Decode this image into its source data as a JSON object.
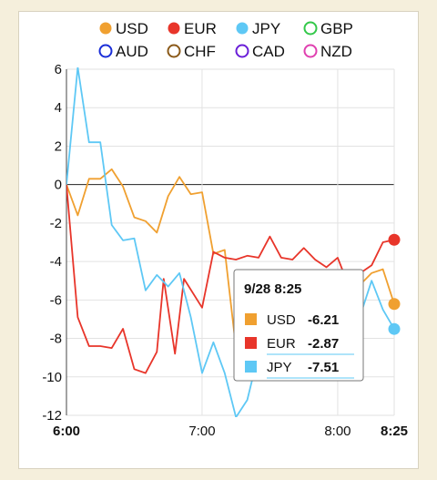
{
  "colors": {
    "USD": "#f0a030",
    "EUR": "#e8352a",
    "JPY": "#5ec8f5",
    "GBP": "#33c84a",
    "AUD": "#1a2ed8",
    "CHF": "#8b5a1a",
    "CAD": "#6a1fd8",
    "NZD": "#e040b0"
  },
  "legend": [
    {
      "name": "USD",
      "filled": true
    },
    {
      "name": "EUR",
      "filled": true
    },
    {
      "name": "JPY",
      "filled": true
    },
    {
      "name": "GBP",
      "filled": false
    },
    {
      "name": "AUD",
      "filled": false
    },
    {
      "name": "CHF",
      "filled": false
    },
    {
      "name": "CAD",
      "filled": false
    },
    {
      "name": "NZD",
      "filled": false
    }
  ],
  "tooltip": {
    "title": "9/28 8:25",
    "rows": [
      {
        "name": "USD",
        "value": "-6.21"
      },
      {
        "name": "EUR",
        "value": "-2.87"
      },
      {
        "name": "JPY",
        "value": "-7.51"
      }
    ]
  },
  "chart_data": {
    "type": "line",
    "ylim": [
      -12,
      6
    ],
    "xlim_minutes": [
      0,
      85
    ],
    "y_ticks": [
      "6",
      "4",
      "2",
      "0",
      "-2",
      "-4",
      "-6",
      "-8",
      "-10",
      "-12"
    ],
    "x_ticks": [
      {
        "label": "6:00",
        "min": 0,
        "bold": true
      },
      {
        "label": "7:00",
        "min": 60,
        "bold": false
      },
      {
        "label": "8:00",
        "min": 120,
        "bold": false
      },
      {
        "label": "8:25",
        "min": 145,
        "bold": true
      }
    ],
    "series": [
      {
        "name": "USD",
        "points": [
          [
            0,
            0
          ],
          [
            5,
            -1.6
          ],
          [
            10,
            0.3
          ],
          [
            15,
            0.3
          ],
          [
            20,
            0.8
          ],
          [
            25,
            -0.1
          ],
          [
            30,
            -1.7
          ],
          [
            35,
            -1.9
          ],
          [
            40,
            -2.5
          ],
          [
            45,
            -0.6
          ],
          [
            50,
            0.4
          ],
          [
            55,
            -0.5
          ],
          [
            60,
            -0.4
          ],
          [
            65,
            -3.6
          ],
          [
            70,
            -3.4
          ],
          [
            75,
            -8.5
          ],
          [
            80,
            -8.2
          ],
          [
            85,
            -7.6
          ],
          [
            90,
            -7.2
          ],
          [
            95,
            -6.8
          ],
          [
            100,
            -6.4
          ],
          [
            105,
            -6.0
          ],
          [
            110,
            -5.6
          ],
          [
            115,
            -5.2
          ],
          [
            120,
            -6.2
          ],
          [
            125,
            -4.8
          ],
          [
            130,
            -5.2
          ],
          [
            135,
            -4.6
          ],
          [
            140,
            -4.4
          ],
          [
            145,
            -6.21
          ]
        ]
      },
      {
        "name": "EUR",
        "points": [
          [
            0,
            0
          ],
          [
            5,
            -6.9
          ],
          [
            10,
            -8.4
          ],
          [
            15,
            -8.4
          ],
          [
            20,
            -8.5
          ],
          [
            25,
            -7.5
          ],
          [
            30,
            -9.6
          ],
          [
            35,
            -9.8
          ],
          [
            40,
            -8.7
          ],
          [
            43,
            -4.9
          ],
          [
            48,
            -8.8
          ],
          [
            52,
            -4.9
          ],
          [
            60,
            -6.4
          ],
          [
            65,
            -3.5
          ],
          [
            70,
            -3.8
          ],
          [
            75,
            -3.9
          ],
          [
            80,
            -3.7
          ],
          [
            85,
            -3.8
          ],
          [
            90,
            -2.7
          ],
          [
            95,
            -3.8
          ],
          [
            100,
            -3.9
          ],
          [
            105,
            -3.3
          ],
          [
            110,
            -3.9
          ],
          [
            115,
            -4.3
          ],
          [
            120,
            -3.8
          ],
          [
            125,
            -5.3
          ],
          [
            130,
            -4.6
          ],
          [
            135,
            -4.2
          ],
          [
            140,
            -3.0
          ],
          [
            145,
            -2.87
          ]
        ]
      },
      {
        "name": "JPY",
        "points": [
          [
            0,
            0
          ],
          [
            5,
            6.1
          ],
          [
            10,
            2.2
          ],
          [
            15,
            2.2
          ],
          [
            20,
            -2.1
          ],
          [
            25,
            -2.9
          ],
          [
            30,
            -2.8
          ],
          [
            35,
            -5.5
          ],
          [
            40,
            -4.7
          ],
          [
            45,
            -5.3
          ],
          [
            50,
            -4.6
          ],
          [
            55,
            -6.9
          ],
          [
            60,
            -9.8
          ],
          [
            65,
            -8.2
          ],
          [
            70,
            -9.8
          ],
          [
            75,
            -12.1
          ],
          [
            80,
            -11.2
          ],
          [
            85,
            -8.8
          ],
          [
            90,
            -7.2
          ],
          [
            95,
            -6.8
          ],
          [
            100,
            -6.2
          ],
          [
            105,
            -4.6
          ],
          [
            110,
            -5.8
          ],
          [
            115,
            -6.3
          ],
          [
            120,
            -6.1
          ],
          [
            125,
            -6.8
          ],
          [
            130,
            -6.8
          ],
          [
            135,
            -5.0
          ],
          [
            140,
            -6.5
          ],
          [
            145,
            -7.51
          ]
        ]
      }
    ]
  }
}
